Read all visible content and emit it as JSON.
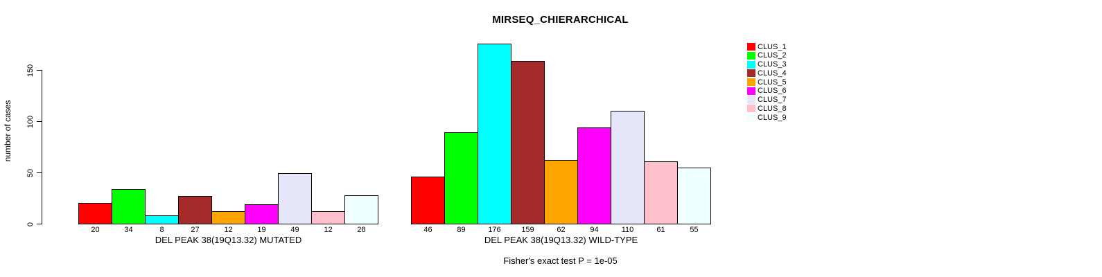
{
  "chart_data": {
    "type": "bar",
    "title": "MIRSEQ_CHIERARCHICAL",
    "ylabel": "number of cases",
    "xlabel": "",
    "ylim": [
      0,
      150
    ],
    "yticks": [
      0,
      50,
      100,
      150
    ],
    "grid": false,
    "legend_position": "right",
    "groups": [
      {
        "label": "DEL PEAK 38(19Q13.32) MUTATED",
        "values": [
          20,
          34,
          8,
          27,
          12,
          19,
          49,
          12,
          28
        ]
      },
      {
        "label": "DEL PEAK 38(19Q13.32) WILD-TYPE",
        "values": [
          46,
          89,
          176,
          159,
          62,
          94,
          110,
          61,
          55
        ]
      }
    ],
    "series_legend": [
      {
        "label": "CLUS_1",
        "color": "#FF0000"
      },
      {
        "label": "CLUS_2",
        "color": "#00FF00"
      },
      {
        "label": "CLUS_3",
        "color": "#00FFFF"
      },
      {
        "label": "CLUS_4",
        "color": "#A52A2A"
      },
      {
        "label": "CLUS_5",
        "color": "#FFA500"
      },
      {
        "label": "CLUS_6",
        "color": "#FF00FF"
      },
      {
        "label": "CLUS_7",
        "color": "#E6E6FA"
      },
      {
        "label": "CLUS_8",
        "color": "#FFC0CB"
      },
      {
        "label": "CLUS_9",
        "color": "#F0FFFF"
      }
    ],
    "bar_colors": [
      "#FF0000",
      "#00FF00",
      "#00FFFF",
      "#A52A2A",
      "#FFA500",
      "#FF00FF",
      "#E6E6FA",
      "#FFC0CB",
      "#F0FFFF"
    ],
    "footnote": "Fisher's exact test P = 1e-05"
  }
}
